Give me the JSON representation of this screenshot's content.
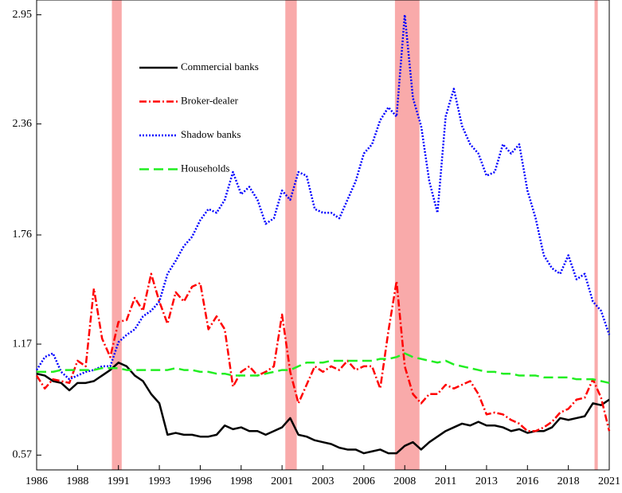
{
  "chart_data": {
    "type": "line",
    "x": [
      1986,
      1986.5,
      1987,
      1987.5,
      1988,
      1988.5,
      1989,
      1989.5,
      1990,
      1990.5,
      1991,
      1991.5,
      1992,
      1992.5,
      1993,
      1993.5,
      1994,
      1994.5,
      1995,
      1995.5,
      1996,
      1996.5,
      1997,
      1997.5,
      1998,
      1998.5,
      1999,
      1999.5,
      2000,
      2000.5,
      2001,
      2001.5,
      2002,
      2002.5,
      2003,
      2003.5,
      2004,
      2004.5,
      2005,
      2005.5,
      2006,
      2006.5,
      2007,
      2007.5,
      2008,
      2008.5,
      2009,
      2009.5,
      2010,
      2010.5,
      2011,
      2011.5,
      2012,
      2012.5,
      2013,
      2013.5,
      2014,
      2014.5,
      2015,
      2015.5,
      2016,
      2016.5,
      2017,
      2017.5,
      2018,
      2018.5,
      2019,
      2019.5,
      2020,
      2020.5,
      2021
    ],
    "series": [
      {
        "name": "Commercial banks",
        "color": "#000000",
        "dash": "none",
        "values": [
          1.01,
          1.0,
          0.97,
          0.96,
          0.92,
          0.96,
          0.96,
          0.97,
          1.0,
          1.03,
          1.07,
          1.05,
          1.0,
          0.97,
          0.9,
          0.85,
          0.68,
          0.69,
          0.68,
          0.68,
          0.67,
          0.67,
          0.68,
          0.73,
          0.71,
          0.72,
          0.7,
          0.7,
          0.68,
          0.7,
          0.72,
          0.77,
          0.68,
          0.67,
          0.65,
          0.64,
          0.63,
          0.61,
          0.6,
          0.6,
          0.58,
          0.59,
          0.6,
          0.58,
          0.58,
          0.62,
          0.64,
          0.6,
          0.64,
          0.67,
          0.7,
          0.72,
          0.74,
          0.73,
          0.75,
          0.73,
          0.73,
          0.72,
          0.7,
          0.71,
          0.69,
          0.7,
          0.7,
          0.72,
          0.77,
          0.76,
          0.77,
          0.78,
          0.85,
          0.84,
          0.87
        ]
      },
      {
        "name": "Broker-dealer",
        "color": "#ff0000",
        "dash": "9,3,2,3",
        "values": [
          1.0,
          0.93,
          0.98,
          0.97,
          0.96,
          1.08,
          1.05,
          1.47,
          1.2,
          1.1,
          1.29,
          1.3,
          1.42,
          1.35,
          1.55,
          1.4,
          1.28,
          1.45,
          1.4,
          1.48,
          1.5,
          1.25,
          1.32,
          1.25,
          0.94,
          1.02,
          1.05,
          1.0,
          1.02,
          1.05,
          1.33,
          1.02,
          0.85,
          0.95,
          1.05,
          1.02,
          1.05,
          1.03,
          1.08,
          1.03,
          1.05,
          1.05,
          0.93,
          1.24,
          1.51,
          1.05,
          0.9,
          0.85,
          0.9,
          0.9,
          0.95,
          0.93,
          0.95,
          0.97,
          0.9,
          0.79,
          0.8,
          0.79,
          0.76,
          0.74,
          0.7,
          0.7,
          0.72,
          0.75,
          0.8,
          0.82,
          0.87,
          0.88,
          0.98,
          0.88,
          0.7
        ]
      },
      {
        "name": "Shadow banks",
        "color": "#0000ff",
        "dash": "2,2",
        "values": [
          1.03,
          1.1,
          1.12,
          1.02,
          0.98,
          1.0,
          1.02,
          1.03,
          1.05,
          1.05,
          1.18,
          1.22,
          1.25,
          1.32,
          1.35,
          1.4,
          1.55,
          1.62,
          1.7,
          1.75,
          1.84,
          1.9,
          1.88,
          1.95,
          2.1,
          1.98,
          2.02,
          1.95,
          1.82,
          1.85,
          2.0,
          1.95,
          2.1,
          2.08,
          1.9,
          1.88,
          1.88,
          1.85,
          1.95,
          2.05,
          2.2,
          2.25,
          2.38,
          2.45,
          2.4,
          2.95,
          2.5,
          2.35,
          2.05,
          1.88,
          2.4,
          2.55,
          2.35,
          2.25,
          2.2,
          2.08,
          2.1,
          2.25,
          2.2,
          2.25,
          2.0,
          1.85,
          1.65,
          1.58,
          1.55,
          1.65,
          1.52,
          1.55,
          1.4,
          1.35,
          1.22
        ]
      },
      {
        "name": "Households",
        "color": "#22ee22",
        "dash": "12,6",
        "values": [
          1.02,
          1.02,
          1.02,
          1.03,
          1.03,
          1.03,
          1.03,
          1.03,
          1.04,
          1.04,
          1.04,
          1.03,
          1.03,
          1.03,
          1.03,
          1.03,
          1.03,
          1.04,
          1.03,
          1.03,
          1.02,
          1.02,
          1.01,
          1.01,
          1.0,
          1.0,
          1.0,
          1.0,
          1.01,
          1.02,
          1.03,
          1.03,
          1.05,
          1.07,
          1.07,
          1.07,
          1.08,
          1.08,
          1.08,
          1.08,
          1.08,
          1.08,
          1.09,
          1.09,
          1.1,
          1.12,
          1.1,
          1.09,
          1.08,
          1.07,
          1.08,
          1.06,
          1.05,
          1.04,
          1.03,
          1.02,
          1.02,
          1.01,
          1.01,
          1.0,
          1.0,
          1.0,
          0.99,
          0.99,
          0.99,
          0.99,
          0.98,
          0.98,
          0.98,
          0.97,
          0.96
        ]
      }
    ],
    "recessions": [
      [
        1990.6,
        1991.2
      ],
      [
        2001.2,
        2001.9
      ],
      [
        2007.9,
        2009.4
      ],
      [
        2020.1,
        2020.3
      ]
    ],
    "recession_color": "#f9aaaa",
    "xlim": [
      1986,
      2021
    ],
    "xticks": [
      1986,
      {
        "value": 1988.5,
        "label": "1988"
      },
      1991,
      {
        "value": 1993.5,
        "label": "1993"
      },
      1996,
      {
        "value": 1998.5,
        "label": "1998"
      },
      2001,
      {
        "value": 2003.5,
        "label": "2003"
      },
      2006,
      {
        "value": 2008.5,
        "label": "2008"
      },
      2011,
      {
        "value": 2013.5,
        "label": "2013"
      },
      2016,
      {
        "value": 2018.5,
        "label": "2018"
      },
      2021
    ],
    "ylim": [
      0.49,
      3.03
    ],
    "yticks": [
      0.57,
      1.17,
      1.76,
      2.36,
      2.95
    ],
    "grid": false,
    "legend": "upper left"
  }
}
